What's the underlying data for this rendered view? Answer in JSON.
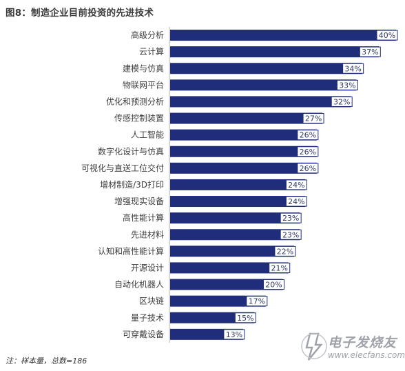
{
  "figure": {
    "title": "图8：制造企业目前投资的先进技术",
    "footnote": "注：样本量，总数=186"
  },
  "watermark": {
    "brand": "电子发烧友",
    "url": "www.elecfans.com"
  },
  "colors": {
    "bar": "#1f2d7a",
    "label_box_fill": "#ffffff",
    "label_box_border": "#1f2d7a",
    "axis_line": "#b3b3b3"
  },
  "chart_data": {
    "type": "bar",
    "orientation": "horizontal",
    "title": "图8：制造企业目前投资的先进技术",
    "xlabel": "",
    "ylabel": "",
    "unit": "%",
    "xlim": [
      0,
      40
    ],
    "grid": false,
    "categories": [
      "高级分析",
      "云计算",
      "建模与仿真",
      "物联网平台",
      "优化和预测分析",
      "传感控制装置",
      "人工智能",
      "数字化设计与仿真",
      "可视化与直送工位交付",
      "增材制造/3D打印",
      "增强现实设备",
      "高性能计算",
      "先进材料",
      "认知和高性能计算",
      "开源设计",
      "自动化机器人",
      "区块链",
      "量子技术",
      "可穿戴设备"
    ],
    "values": [
      40,
      37,
      34,
      33,
      32,
      27,
      26,
      26,
      26,
      24,
      24,
      23,
      23,
      22,
      21,
      20,
      17,
      15,
      13
    ],
    "value_labels": [
      "40%",
      "37%",
      "34%",
      "33%",
      "32%",
      "27%",
      "26%",
      "26%",
      "26%",
      "24%",
      "24%",
      "23%",
      "23%",
      "22%",
      "21%",
      "20%",
      "17%",
      "15%",
      "13%"
    ]
  }
}
